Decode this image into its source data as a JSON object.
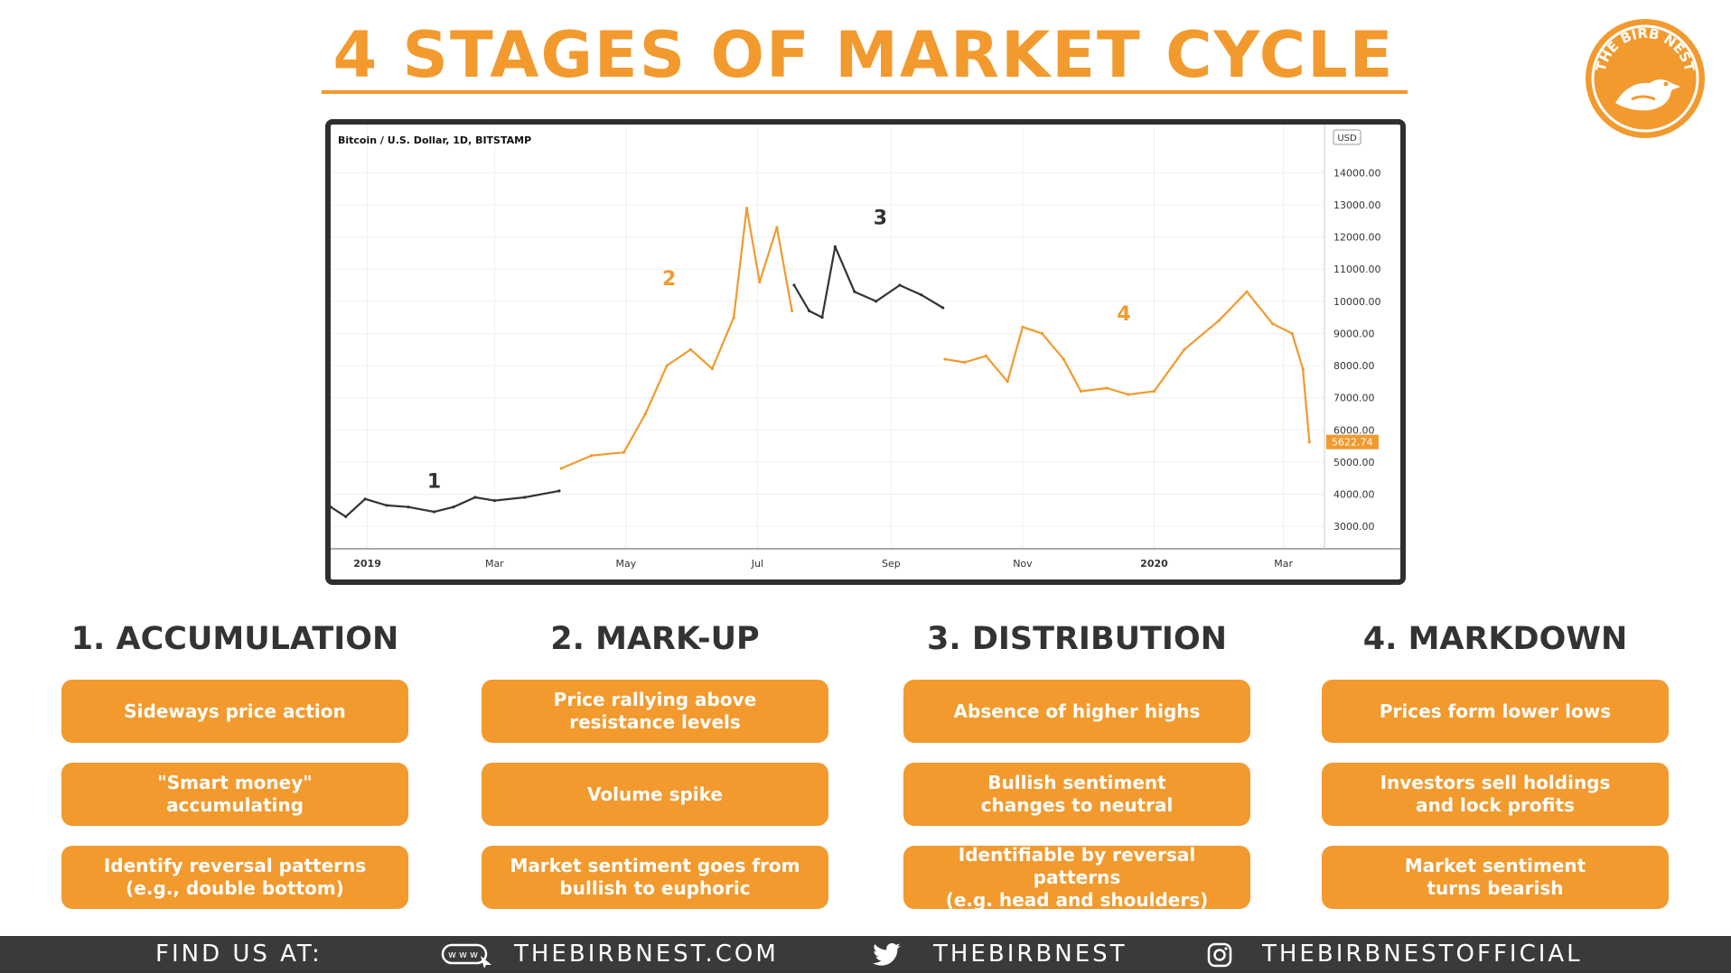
{
  "title": "4 STAGES OF MARKET CYCLE",
  "logo": {
    "text": "THE BIRB NEST",
    "color": "#F29A2E"
  },
  "colors": {
    "accent": "#F29A2E",
    "dark": "#333333",
    "footer_bg": "#3a3a3a"
  },
  "chart_data": {
    "type": "line",
    "title": "Bitcoin / U.S. Dollar, 1D, BITSTAMP",
    "currency_badge": "USD",
    "x_ticks": [
      "2019",
      "Mar",
      "May",
      "Jul",
      "Sep",
      "Nov",
      "2020",
      "Mar"
    ],
    "y_ticks": [
      "14000.00",
      "13000.00",
      "12000.00",
      "11000.00",
      "10000.00",
      "9000.00",
      "8000.00",
      "7000.00",
      "6000.00",
      "5000.00",
      "4000.00",
      "3000.00"
    ],
    "ylim": [
      2300,
      15500
    ],
    "last_price": "5622.74",
    "series": [
      {
        "stage": "1",
        "color": "#333333",
        "x": [
          "2018-12-15",
          "2018-12-22",
          "2018-12-31",
          "2019-01-10",
          "2019-01-20",
          "2019-02-01",
          "2019-02-10",
          "2019-02-20",
          "2019-03-01",
          "2019-03-15",
          "2019-03-31"
        ],
        "y": [
          3600,
          3300,
          3850,
          3650,
          3600,
          3450,
          3600,
          3900,
          3800,
          3900,
          4100
        ]
      },
      {
        "stage": "2",
        "color": "#F29A2E",
        "x": [
          "2019-04-01",
          "2019-04-15",
          "2019-04-30",
          "2019-05-10",
          "2019-05-20",
          "2019-05-31",
          "2019-06-10",
          "2019-06-20",
          "2019-06-26",
          "2019-07-02",
          "2019-07-10",
          "2019-07-17"
        ],
        "y": [
          4800,
          5200,
          5300,
          6500,
          8000,
          8500,
          7900,
          9500,
          12900,
          10600,
          12300,
          9700
        ]
      },
      {
        "stage": "3",
        "color": "#333333",
        "x": [
          "2019-07-18",
          "2019-07-25",
          "2019-07-31",
          "2019-08-06",
          "2019-08-15",
          "2019-08-25",
          "2019-09-05",
          "2019-09-15",
          "2019-09-25"
        ],
        "y": [
          10500,
          9700,
          9500,
          11700,
          10300,
          10000,
          10500,
          10200,
          9800
        ]
      },
      {
        "stage": "4",
        "color": "#F29A2E",
        "x": [
          "2019-09-26",
          "2019-10-05",
          "2019-10-15",
          "2019-10-25",
          "2019-11-01",
          "2019-11-10",
          "2019-11-20",
          "2019-11-28",
          "2019-12-10",
          "2019-12-20",
          "2020-01-01",
          "2020-01-15",
          "2020-01-31",
          "2020-02-13",
          "2020-02-25",
          "2020-03-05",
          "2020-03-10",
          "2020-03-13"
        ],
        "y": [
          8200,
          8100,
          8300,
          7500,
          9200,
          9000,
          8200,
          7200,
          7300,
          7100,
          7200,
          8500,
          9400,
          10300,
          9300,
          9000,
          7900,
          5622
        ]
      }
    ],
    "annotations": [
      {
        "label": "1",
        "x": "2019-02-01",
        "y": 4200,
        "color": "#333333"
      },
      {
        "label": "2",
        "x": "2019-05-21",
        "y": 10500,
        "color": "#F29A2E"
      },
      {
        "label": "3",
        "x": "2019-08-27",
        "y": 12400,
        "color": "#333333"
      },
      {
        "label": "4",
        "x": "2019-12-18",
        "y": 9400,
        "color": "#F29A2E"
      }
    ]
  },
  "stages": [
    {
      "heading": "1. ACCUMULATION",
      "points": [
        "Sideways price action",
        "\"Smart money\"\naccumulating",
        "Identify reversal patterns\n(e.g., double bottom)"
      ]
    },
    {
      "heading": "2. MARK-UP",
      "points": [
        "Price rallying above\nresistance levels",
        "Volume spike",
        "Market sentiment goes from\nbullish to euphoric"
      ]
    },
    {
      "heading": "3. DISTRIBUTION",
      "points": [
        "Absence of higher highs",
        "Bullish sentiment\nchanges to neutral",
        "Identifiable by reversal patterns\n(e.g. head and shoulders)"
      ]
    },
    {
      "heading": "4. MARKDOWN",
      "points": [
        "Prices form lower lows",
        "Investors sell holdings\nand lock profits",
        "Market sentiment\nturns bearish"
      ]
    }
  ],
  "footer": {
    "find_us": "FIND US AT:",
    "website_icon_text": "www",
    "website": "THEBIRBNEST.COM",
    "twitter": "THEBIRBNEST",
    "instagram": "THEBIRBNESTOFFICIAL"
  }
}
